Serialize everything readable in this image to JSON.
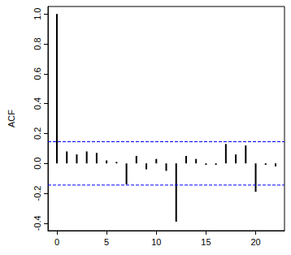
{
  "chart_data": {
    "type": "bar",
    "y_label": "ACF",
    "x": [
      0,
      1,
      2,
      3,
      4,
      5,
      6,
      7,
      8,
      9,
      10,
      11,
      12,
      13,
      14,
      15,
      16,
      17,
      18,
      19,
      20,
      21,
      22
    ],
    "values": [
      1.0,
      0.08,
      0.06,
      0.08,
      0.07,
      0.02,
      0.01,
      -0.14,
      0.05,
      -0.04,
      0.03,
      -0.05,
      -0.39,
      0.05,
      0.03,
      -0.01,
      -0.01,
      0.13,
      0.06,
      0.12,
      -0.19,
      -0.01,
      -0.02
    ],
    "color": "#000000",
    "xlim": [
      -0.9,
      22.9
    ],
    "xticks": [
      0,
      5,
      10,
      15,
      20
    ],
    "ylim": [
      -0.45,
      1.05
    ],
    "yticks": [
      -0.4,
      -0.2,
      {
        "value": 0,
        "label": "0.0"
      },
      0.2,
      0.4,
      0.6,
      0.8,
      {
        "value": 1,
        "label": "1.0"
      }
    ],
    "confidence_band": {
      "values": [
        -0.145,
        0.145
      ],
      "color": "#0000ff",
      "line_style": "dashed"
    },
    "grid": false
  }
}
